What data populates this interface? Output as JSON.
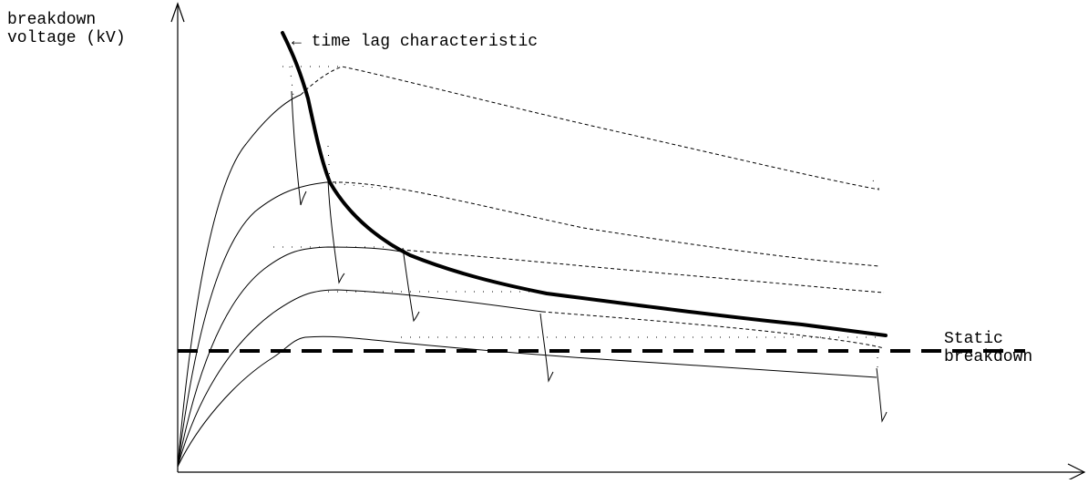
{
  "labels": {
    "y_axis_line1": "breakdown",
    "y_axis_line2": "voltage (kV)",
    "time_lag": "← time lag characteristic",
    "static_line1": "Static",
    "static_line2": "breakdown"
  },
  "colors": {
    "ink": "#000000",
    "background": "#ffffff"
  }
}
